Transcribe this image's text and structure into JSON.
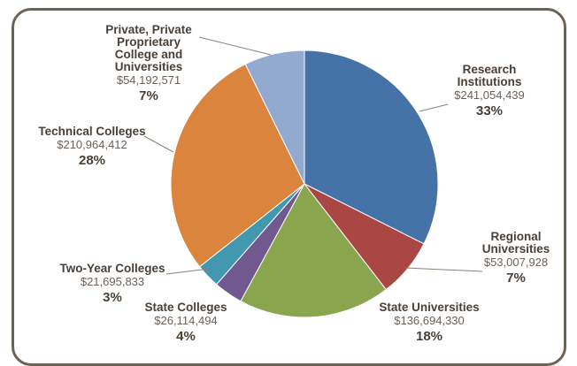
{
  "chart_data": {
    "type": "pie",
    "title": "",
    "slices": [
      {
        "name": "Research Institutions",
        "value": 241054439,
        "value_label": "$241,054,439",
        "percent_label": "33%",
        "color": "#4572a7"
      },
      {
        "name": "Regional Universities",
        "value": 53007928,
        "value_label": "$53,007,928",
        "percent_label": "7%",
        "color": "#aa4643"
      },
      {
        "name": "State Universities",
        "value": 136694330,
        "value_label": "$136,694,330",
        "percent_label": "18%",
        "color": "#89a54e"
      },
      {
        "name": "State Colleges",
        "value": 26114494,
        "value_label": "$26,114,494",
        "percent_label": "4%",
        "color": "#71588f"
      },
      {
        "name": "Two-Year Colleges",
        "value": 21695833,
        "value_label": "$21,695,833",
        "percent_label": "3%",
        "color": "#4198af"
      },
      {
        "name": "Technical Colleges",
        "value": 210964412,
        "value_label": "$210,964,412",
        "percent_label": "28%",
        "color": "#db843d"
      },
      {
        "name": "Private, Private Proprietary College and Universities",
        "value": 54192571,
        "value_label": "$54,192,571",
        "percent_label": "7%",
        "color": "#93a9cf"
      }
    ],
    "legend": "none"
  }
}
